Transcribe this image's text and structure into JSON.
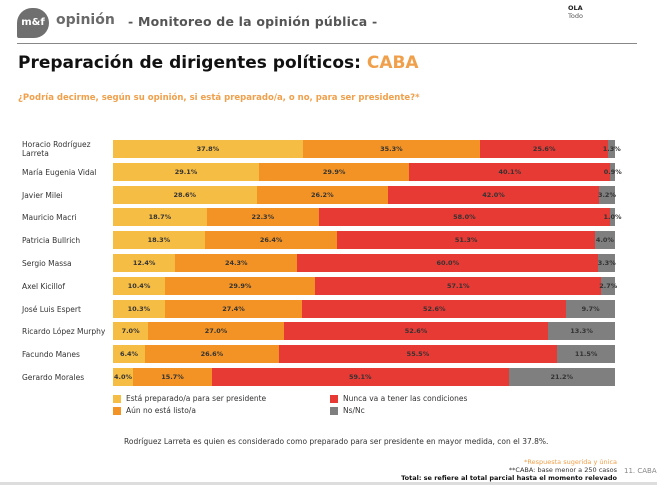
{
  "header": {
    "logo_text": "m&f",
    "brand": "opinión",
    "subtitle": "- Monitoreo de la opinión pública -",
    "ola_label": "OLA",
    "ola_value": "Todo"
  },
  "page": {
    "title_main": "Preparación de dirigentes políticos: ",
    "title_accent": "CABA",
    "question": "¿Podría decirme, según su opinión, si está preparado/a, o no, para ser presidente?*",
    "note": "Rodríguez Larreta es quien es considerado como preparado para ser presidente en mayor medida, con el 37.8%.",
    "footnote_1": "*Respuesta sugerida y única",
    "footnote_2": "**CABA: base menor a 250 casos",
    "footnote_3": "Total: se refiere al total parcial hasta el momento relevado",
    "page_number": "11. CABA"
  },
  "colors": {
    "preparado": "#f6bd45",
    "no_listo": "#f39325",
    "nunca": "#e73a35",
    "nsnc": "#7f7f7f",
    "accent": "#f0a04b"
  },
  "chart_data": {
    "type": "bar",
    "orientation": "horizontal",
    "stacked": true,
    "normalized": true,
    "title": "Preparación de dirigentes políticos: CABA",
    "xlabel": "",
    "ylabel": "",
    "xlim": [
      0,
      100
    ],
    "legend_position": "bottom",
    "categories": [
      "Horacio Rodríguez Larreta",
      "María Eugenia Vidal",
      "Javier Milei",
      "Mauricio Macri",
      "Patricia Bullrich",
      "Sergio Massa",
      "Axel Kicillof",
      "José Luis Espert",
      "Ricardo López Murphy",
      "Facundo Manes",
      "Gerardo Morales"
    ],
    "series": [
      {
        "name": "Está preparado/a para ser presidente",
        "color_key": "preparado",
        "values": [
          37.8,
          29.1,
          28.6,
          18.7,
          18.3,
          12.4,
          10.4,
          10.3,
          7.0,
          6.4,
          4.0
        ]
      },
      {
        "name": "Aún no está listo/a",
        "color_key": "no_listo",
        "values": [
          35.3,
          29.9,
          26.2,
          22.3,
          26.4,
          24.3,
          29.9,
          27.4,
          27.0,
          26.6,
          15.7
        ]
      },
      {
        "name": "Nunca va a tener las condiciones",
        "color_key": "nunca",
        "values": [
          25.6,
          40.1,
          42.0,
          58.0,
          51.3,
          60.0,
          57.1,
          52.6,
          52.6,
          55.5,
          59.1
        ]
      },
      {
        "name": "Ns/Nc",
        "color_key": "nsnc",
        "values": [
          1.3,
          0.9,
          3.2,
          1.0,
          4.0,
          3.3,
          2.7,
          9.7,
          13.3,
          11.5,
          21.2
        ]
      }
    ],
    "value_labels": [
      [
        "37.8%",
        "35.3%",
        "25.6%",
        "1.3%"
      ],
      [
        "29.1%",
        "29.9%",
        "40.1%",
        "0.9%"
      ],
      [
        "28.6%",
        "26.2%",
        "42.0%",
        "3.2%"
      ],
      [
        "18.7%",
        "22.3%",
        "58.0%",
        "1.0%"
      ],
      [
        "18.3%",
        "26.4%",
        "51.3%",
        "4.0%"
      ],
      [
        "12.4%",
        "24.3%",
        "60.0%",
        "3.3%"
      ],
      [
        "10.4%",
        "29.9%",
        "57.1%",
        "2.7%"
      ],
      [
        "10.3%",
        "27.4%",
        "52.6%",
        "9.7%"
      ],
      [
        "7.0%",
        "27.0%",
        "52.6%",
        "13.3%"
      ],
      [
        "6.4%",
        "26.6%",
        "55.5%",
        "11.5%"
      ],
      [
        "4.0%",
        "15.7%",
        "59.1%",
        "21.2%"
      ]
    ],
    "row_labels_display": [
      [
        "Horacio Rodríguez",
        "Larreta"
      ],
      [
        "María Eugenia Vidal"
      ],
      [
        "Javier Milei"
      ],
      [
        "Mauricio Macri"
      ],
      [
        "Patricia Bullrich"
      ],
      [
        "Sergio Massa"
      ],
      [
        "Axel Kicillof"
      ],
      [
        "José Luis Espert"
      ],
      [
        "Ricardo López Murphy"
      ],
      [
        "Facundo Manes"
      ],
      [
        "Gerardo Morales"
      ]
    ]
  }
}
